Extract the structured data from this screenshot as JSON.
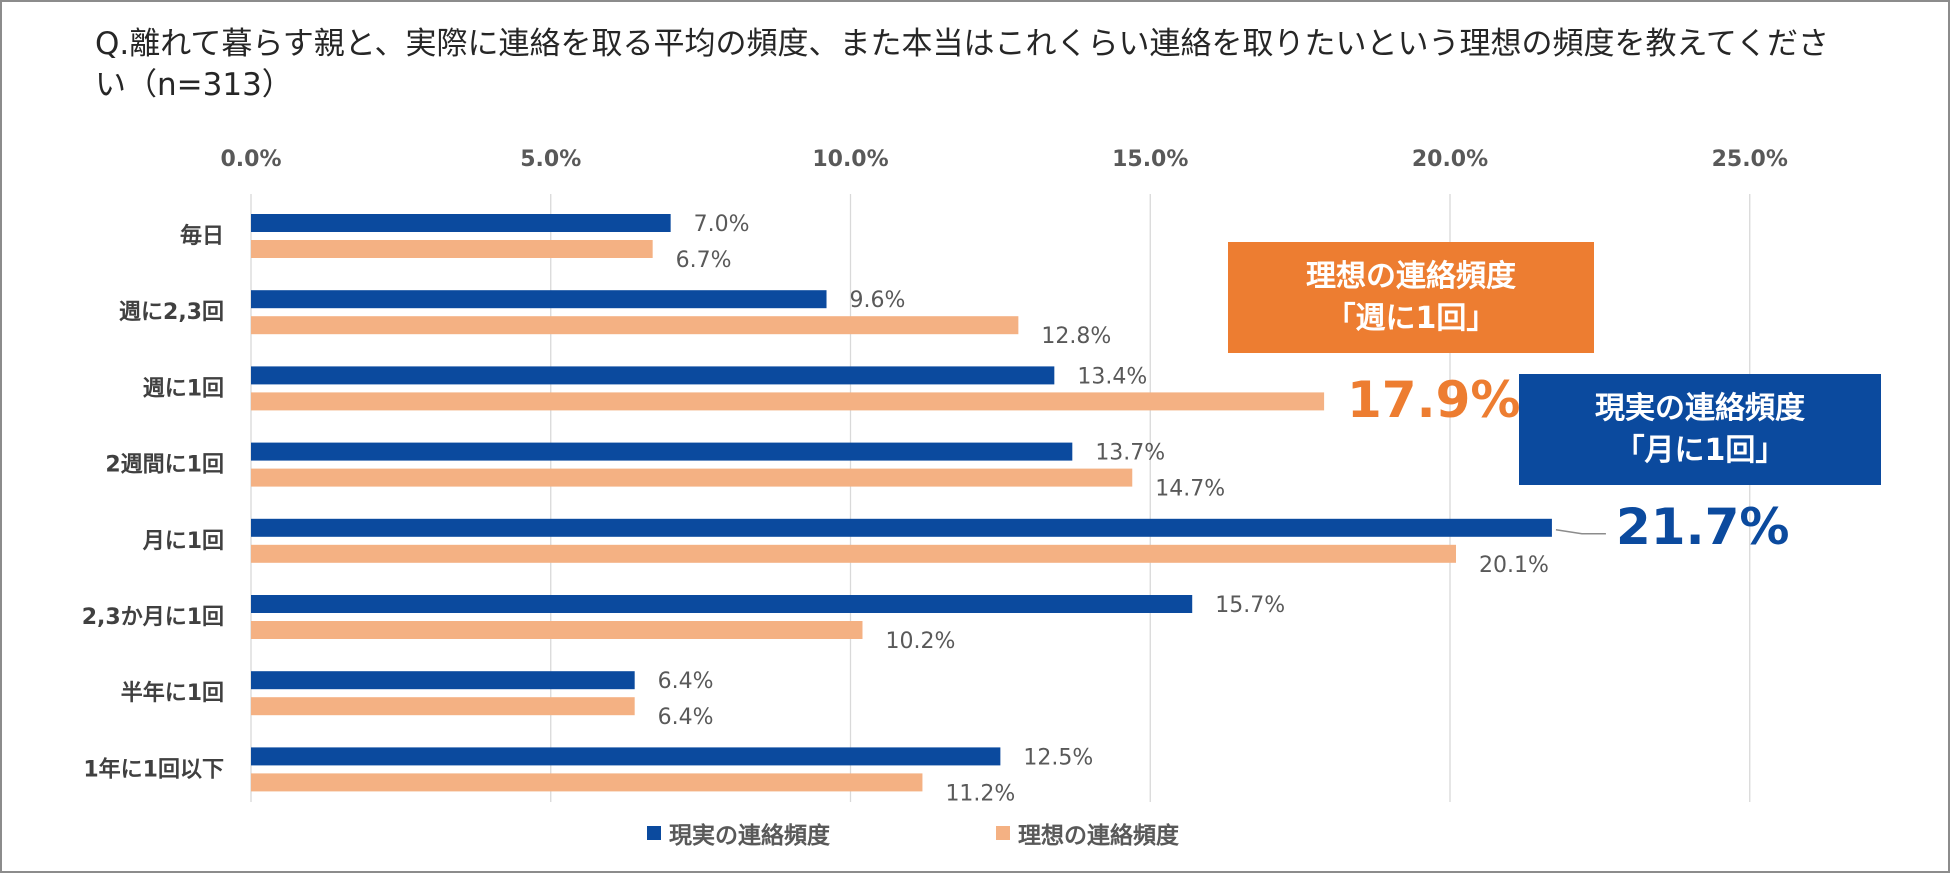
{
  "title": "Q.離れて暮らす親と、実際に連絡を取る平均の頻度、また本当はこれくらい連絡を取りたいという理想の頻度を教えてください（n=313）",
  "colors": {
    "actual": "#0b4a9e",
    "ideal": "#f4b183",
    "callout_ideal": "#ed7d31",
    "callout_actual": "#0b4a9e"
  },
  "callouts": {
    "ideal": {
      "line1": "理想の連絡頻度",
      "line2": "「週に1回」",
      "value": "17.9%"
    },
    "actual": {
      "line1": "現実の連絡頻度",
      "line2": "「月に1回」",
      "value": "21.7%"
    }
  },
  "chart_data": {
    "type": "bar",
    "orientation": "horizontal",
    "categories": [
      "毎日",
      "週に2,3回",
      "週に1回",
      "2週間に1回",
      "月に1回",
      "2,3か月に1回",
      "半年に1回",
      "1年に1回以下"
    ],
    "series": [
      {
        "name": "現実の連絡頻度",
        "values": [
          7.0,
          9.6,
          13.4,
          13.7,
          21.7,
          15.7,
          6.4,
          12.5
        ],
        "labels": [
          "7.0%",
          "9.6%",
          "13.4%",
          "13.7%",
          "",
          "15.7%",
          "6.4%",
          "12.5%"
        ]
      },
      {
        "name": "理想の連絡頻度",
        "values": [
          6.7,
          12.8,
          17.9,
          14.7,
          20.1,
          10.2,
          6.4,
          11.2
        ],
        "labels": [
          "6.7%",
          "12.8%",
          "",
          "14.7%",
          "20.1%",
          "10.2%",
          "6.4%",
          "11.2%"
        ]
      }
    ],
    "xticks": [
      0,
      5,
      10,
      15,
      20,
      25
    ],
    "xtick_labels": [
      "0.0%",
      "5.0%",
      "10.0%",
      "15.0%",
      "20.0%",
      "25.0%"
    ],
    "xlim": [
      0,
      25
    ],
    "xaxis_position": "top",
    "grid": true,
    "legend_position": "bottom"
  }
}
